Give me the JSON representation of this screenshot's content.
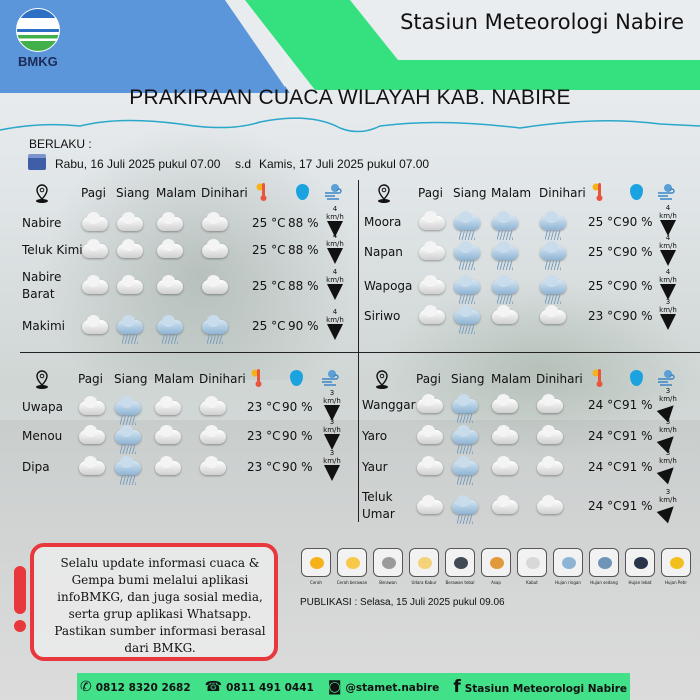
{
  "header": {
    "logo_text": "BMKG",
    "station": "Stasiun Meteorologi Nabire",
    "title": "PRAKIRAAN CUACA WILAYAH KAB. NABIRE"
  },
  "validity": {
    "label": "BERLAKU :",
    "from": "Rabu, 16 Juli 2025 pukul 07.00",
    "sep": "s.d",
    "to": "Kamis, 17 Juli 2025 pukul 07.00"
  },
  "columns": [
    "Pagi",
    "Siang",
    "Malam",
    "Dinihari"
  ],
  "panels": [
    {
      "rows": [
        {
          "name": "Nabire",
          "wx": [
            "berawan",
            "berawan",
            "berawan",
            "berawan"
          ],
          "temp": "25 °C",
          "hum": "88 %",
          "wind": "4 km/h",
          "wind_arrow": "down"
        },
        {
          "name": "Teluk Kimi",
          "wx": [
            "berawan",
            "berawan",
            "berawan",
            "berawan"
          ],
          "temp": "25 °C",
          "hum": "88 %",
          "wind": "4 km/h",
          "wind_arrow": "down"
        },
        {
          "name": "Nabire Barat",
          "wx": [
            "berawan",
            "berawan",
            "berawan",
            "berawan"
          ],
          "temp": "25 °C",
          "hum": "88 %",
          "wind": "4 km/h",
          "wind_arrow": "down"
        },
        {
          "name": "Makimi",
          "wx": [
            "berawan",
            "hujan-ringan",
            "hujan-ringan",
            "hujan-ringan"
          ],
          "temp": "25 °C",
          "hum": "90 %",
          "wind": "4 km/h",
          "wind_arrow": "down"
        }
      ]
    },
    {
      "rows": [
        {
          "name": "Moora",
          "wx": [
            "berawan",
            "hujan-ringan",
            "hujan-ringan",
            "hujan-ringan"
          ],
          "temp": "25 °C",
          "hum": "90 %",
          "wind": "4 km/h",
          "wind_arrow": "down"
        },
        {
          "name": "Napan",
          "wx": [
            "berawan",
            "hujan-ringan",
            "hujan-ringan",
            "hujan-ringan"
          ],
          "temp": "25 °C",
          "hum": "90 %",
          "wind": "4 km/h",
          "wind_arrow": "down"
        },
        {
          "name": "Wapoga",
          "wx": [
            "berawan",
            "hujan-ringan",
            "hujan-ringan",
            "hujan-ringan"
          ],
          "temp": "25 °C",
          "hum": "90 %",
          "wind": "4 km/h",
          "wind_arrow": "down"
        },
        {
          "name": "Siriwo",
          "wx": [
            "berawan",
            "hujan-ringan",
            "berawan",
            "berawan"
          ],
          "temp": "23 °C",
          "hum": "90 %",
          "wind": "3 km/h",
          "wind_arrow": "down"
        }
      ]
    },
    {
      "rows": [
        {
          "name": "Uwapa",
          "wx": [
            "berawan",
            "hujan-ringan",
            "berawan",
            "berawan"
          ],
          "temp": "23 °C",
          "hum": "90 %",
          "wind": "3 km/h",
          "wind_arrow": "down"
        },
        {
          "name": "Menou",
          "wx": [
            "berawan",
            "hujan-ringan",
            "berawan",
            "berawan"
          ],
          "temp": "23 °C",
          "hum": "90 %",
          "wind": "3 km/h",
          "wind_arrow": "down"
        },
        {
          "name": "Dipa",
          "wx": [
            "berawan",
            "hujan-ringan",
            "berawan",
            "berawan"
          ],
          "temp": "23 °C",
          "hum": "90 %",
          "wind": "3 km/h",
          "wind_arrow": "down"
        }
      ]
    },
    {
      "rows": [
        {
          "name": "Wanggar",
          "wx": [
            "berawan",
            "hujan-ringan",
            "berawan",
            "berawan"
          ],
          "temp": "24 °C",
          "hum": "91 %",
          "wind": "3 km/h",
          "wind_arrow": "up-right"
        },
        {
          "name": "Yaro",
          "wx": [
            "berawan",
            "hujan-ringan",
            "berawan",
            "berawan"
          ],
          "temp": "24 °C",
          "hum": "91 %",
          "wind": "3 km/h",
          "wind_arrow": "up-right"
        },
        {
          "name": "Yaur",
          "wx": [
            "berawan",
            "hujan-ringan",
            "berawan",
            "berawan"
          ],
          "temp": "24 °C",
          "hum": "91 %",
          "wind": "3 km/h",
          "wind_arrow": "up-right"
        },
        {
          "name": "Teluk Umar",
          "wx": [
            "berawan",
            "hujan-ringan",
            "berawan",
            "berawan"
          ],
          "temp": "24 °C",
          "hum": "91 %",
          "wind": "3 km/h",
          "wind_arrow": "up-right"
        }
      ]
    }
  ],
  "notice": "Selalu update informasi cuaca & Gempa bumi melalui aplikasi infoBMKG, dan juga sosial media, serta grup aplikasi Whatsapp. Pastikan sumber informasi berasal dari BMKG.",
  "legend": [
    {
      "label": "Cerah",
      "color": "#f5b21b"
    },
    {
      "label": "Cerah berawan",
      "color": "#f7c84a"
    },
    {
      "label": "Berawan",
      "color": "#9a9a9a"
    },
    {
      "label": "Udara Kabur",
      "color": "#f3d27a"
    },
    {
      "label": "Berawan tebal",
      "color": "#3f4a55"
    },
    {
      "label": "Asap",
      "color": "#e19a3b"
    },
    {
      "label": "Kabut",
      "color": "#d8d8d8"
    },
    {
      "label": "Hujan ringan",
      "color": "#8db4d4"
    },
    {
      "label": "Hujan sedang",
      "color": "#6f94b8"
    },
    {
      "label": "Hujan lebat",
      "color": "#27344a"
    },
    {
      "label": "Hujan Petir",
      "color": "#f2c01e"
    }
  ],
  "publikasi": "PUBLIKASI :  Selasa, 15 Juli 2025 pukul 09.06",
  "footer": {
    "phone": "0812 8320 2682",
    "tel": "0811 491 0441",
    "instagram": "@stamet.nabire",
    "facebook": "Stasiun Meteorologi Nabire"
  },
  "colors": {
    "blue": "#5b96da",
    "green": "#35e07f",
    "alert": "#e8383d"
  }
}
